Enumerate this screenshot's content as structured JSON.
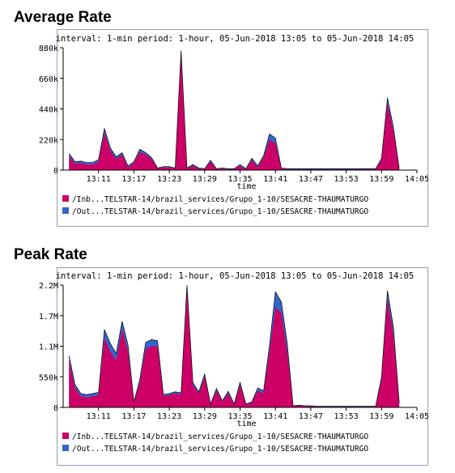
{
  "average": {
    "section_title": "Average Rate",
    "header": "interval: 1-min  period: 1-hour, 05-Jun-2018 13:05 to 05-Jun-2018 14:05"
  },
  "peak": {
    "section_title": "Peak Rate",
    "header": "interval: 1-min  period: 1-hour, 05-Jun-2018 13:05 to 05-Jun-2018 14:05"
  },
  "colors": {
    "inbound": "#cc0066",
    "outbound": "#3366cc",
    "outline": "#000000"
  },
  "chart_data": [
    {
      "type": "area",
      "stacked": true,
      "title": "",
      "xlabel": "time",
      "ylabel": "",
      "ylim": [
        0,
        880000
      ],
      "y_ticks": [
        0,
        220000,
        440000,
        660000,
        880000
      ],
      "y_tick_labels": [
        "0",
        "220k",
        "440k",
        "660k",
        "880k"
      ],
      "x_ticks": [
        "13:11",
        "13:17",
        "13:23",
        "13:29",
        "13:35",
        "13:41",
        "13:47",
        "13:53",
        "13:59",
        "14:05"
      ],
      "x": [
        "13:06",
        "13:07",
        "13:08",
        "13:09",
        "13:10",
        "13:11",
        "13:12",
        "13:13",
        "13:14",
        "13:15",
        "13:16",
        "13:17",
        "13:18",
        "13:19",
        "13:20",
        "13:21",
        "13:22",
        "13:23",
        "13:24",
        "13:25",
        "13:26",
        "13:27",
        "13:28",
        "13:29",
        "13:30",
        "13:31",
        "13:32",
        "13:33",
        "13:34",
        "13:35",
        "13:36",
        "13:37",
        "13:38",
        "13:39",
        "13:40",
        "13:41",
        "13:42",
        "13:43",
        "13:44",
        "13:45",
        "13:46",
        "13:47",
        "13:48",
        "13:49",
        "13:50",
        "13:51",
        "13:52",
        "13:53",
        "13:54",
        "13:55",
        "13:56",
        "13:57",
        "13:58",
        "13:59",
        "14:00",
        "14:01",
        "14:02"
      ],
      "legend_position": "bottom",
      "series": [
        {
          "name": "/Inb...TELSTAR-14/brazil_services/Grupo_1-10/SESACRE-THAUMATURGO",
          "values": [
            100000,
            45000,
            50000,
            40000,
            40000,
            60000,
            270000,
            140000,
            80000,
            110000,
            20000,
            50000,
            130000,
            110000,
            80000,
            10000,
            20000,
            20000,
            10000,
            820000,
            10000,
            30000,
            10000,
            5000,
            60000,
            5000,
            10000,
            5000,
            5000,
            30000,
            5000,
            70000,
            20000,
            90000,
            220000,
            190000,
            10000,
            5000,
            5000,
            5000,
            5000,
            5000,
            5000,
            5000,
            5000,
            5000,
            5000,
            5000,
            5000,
            5000,
            5000,
            5000,
            5000,
            70000,
            480000,
            280000,
            5000
          ]
        },
        {
          "name": "/Out...TELSTAR-14/brazil_services/Grupo_1-10/SESACRE-THAUMATURGO",
          "values": [
            20000,
            15000,
            15000,
            15000,
            15000,
            15000,
            30000,
            20000,
            15000,
            15000,
            10000,
            10000,
            20000,
            15000,
            10000,
            5000,
            5000,
            5000,
            5000,
            40000,
            5000,
            10000,
            5000,
            5000,
            10000,
            5000,
            5000,
            5000,
            5000,
            10000,
            5000,
            15000,
            10000,
            15000,
            40000,
            40000,
            5000,
            5000,
            5000,
            5000,
            5000,
            5000,
            5000,
            5000,
            5000,
            5000,
            5000,
            5000,
            5000,
            5000,
            5000,
            5000,
            5000,
            15000,
            40000,
            30000,
            5000
          ]
        }
      ]
    },
    {
      "type": "area",
      "stacked": true,
      "title": "",
      "xlabel": "time",
      "ylabel": "",
      "ylim": [
        0,
        2200000
      ],
      "y_ticks": [
        0,
        550000,
        1100000,
        1650000,
        2200000
      ],
      "y_tick_labels": [
        "0",
        "550k",
        "1.1M",
        "1.7M",
        "2.2M"
      ],
      "x_ticks": [
        "13:11",
        "13:17",
        "13:23",
        "13:29",
        "13:35",
        "13:41",
        "13:47",
        "13:53",
        "13:59",
        "14:05"
      ],
      "x": [
        "13:06",
        "13:07",
        "13:08",
        "13:09",
        "13:10",
        "13:11",
        "13:12",
        "13:13",
        "13:14",
        "13:15",
        "13:16",
        "13:17",
        "13:18",
        "13:19",
        "13:20",
        "13:21",
        "13:22",
        "13:23",
        "13:24",
        "13:25",
        "13:26",
        "13:27",
        "13:28",
        "13:29",
        "13:30",
        "13:31",
        "13:32",
        "13:33",
        "13:34",
        "13:35",
        "13:36",
        "13:37",
        "13:38",
        "13:39",
        "13:40",
        "13:41",
        "13:42",
        "13:43",
        "13:44",
        "13:45",
        "13:46",
        "13:47",
        "13:48",
        "13:49",
        "13:50",
        "13:51",
        "13:52",
        "13:53",
        "13:54",
        "13:55",
        "13:56",
        "13:57",
        "13:58",
        "13:59",
        "14:00",
        "14:01",
        "14:02"
      ],
      "legend_position": "bottom",
      "series": [
        {
          "name": "/Inb...TELSTAR-14/brazil_services/Grupo_1-10/SESACRE-THAUMATURGO",
          "values": [
            850000,
            350000,
            200000,
            180000,
            200000,
            220000,
            1250000,
            1000000,
            850000,
            1400000,
            1000000,
            80000,
            450000,
            1050000,
            1100000,
            1100000,
            200000,
            220000,
            250000,
            230000,
            2100000,
            400000,
            250000,
            550000,
            50000,
            300000,
            100000,
            250000,
            50000,
            400000,
            50000,
            80000,
            300000,
            250000,
            1000000,
            1800000,
            1700000,
            1000000,
            20000,
            30000,
            20000,
            20000,
            10000,
            10000,
            10000,
            10000,
            10000,
            10000,
            10000,
            10000,
            10000,
            10000,
            10000,
            500000,
            1950000,
            1300000,
            60000
          ]
        },
        {
          "name": "/Out...TELSTAR-14/brazil_services/Grupo_1-10/SESACRE-THAUMATURGO",
          "values": [
            80000,
            60000,
            50000,
            50000,
            50000,
            50000,
            150000,
            150000,
            120000,
            150000,
            120000,
            20000,
            50000,
            120000,
            120000,
            100000,
            30000,
            30000,
            30000,
            30000,
            100000,
            50000,
            30000,
            50000,
            10000,
            40000,
            20000,
            40000,
            10000,
            50000,
            10000,
            20000,
            50000,
            50000,
            120000,
            280000,
            200000,
            150000,
            10000,
            10000,
            10000,
            10000,
            10000,
            10000,
            10000,
            10000,
            10000,
            10000,
            10000,
            10000,
            10000,
            10000,
            10000,
            50000,
            150000,
            150000,
            20000
          ]
        }
      ]
    }
  ]
}
